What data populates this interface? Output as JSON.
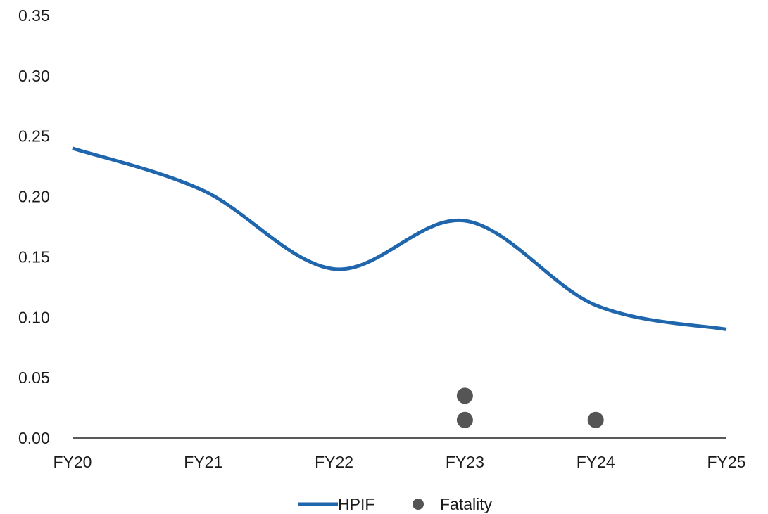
{
  "chart_data": {
    "type": "line",
    "categories": [
      "FY20",
      "FY21",
      "FY22",
      "FY23",
      "FY24",
      "FY25"
    ],
    "ylim": [
      0,
      0.35
    ],
    "y_ticks": [
      "0.00",
      "0.05",
      "0.10",
      "0.15",
      "0.20",
      "0.25",
      "0.30",
      "0.35"
    ],
    "grid": false,
    "legend_position": "bottom",
    "series": [
      {
        "name": "HPIF",
        "type": "line",
        "smooth": true,
        "color": "#1f66ad",
        "values": [
          0.24,
          0.205,
          0.14,
          0.18,
          0.11,
          0.09
        ]
      },
      {
        "name": "Fatality",
        "type": "scatter",
        "color": "#555555",
        "points": [
          {
            "x": "FY23",
            "y": 0.015
          },
          {
            "x": "FY23",
            "y": 0.035
          },
          {
            "x": "FY24",
            "y": 0.015
          }
        ]
      }
    ],
    "axis_color": "#595959"
  }
}
